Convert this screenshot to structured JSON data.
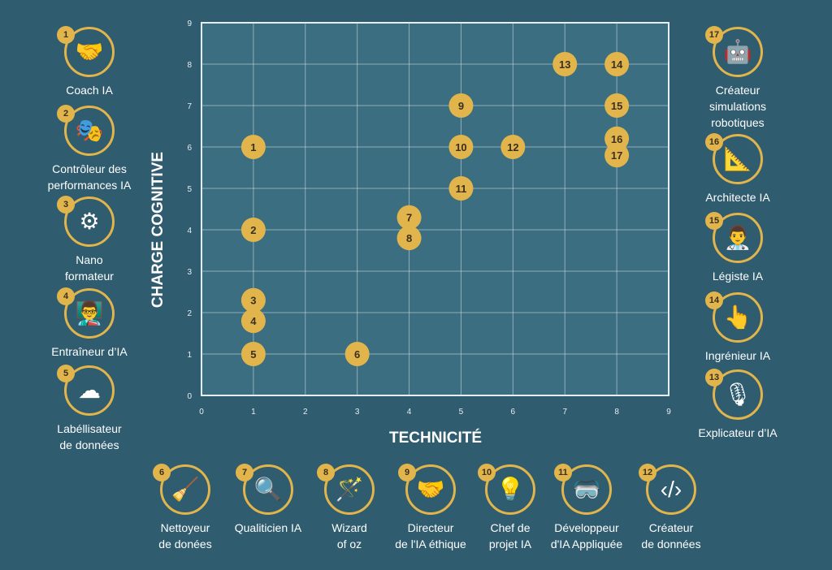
{
  "chart_data": {
    "type": "scatter",
    "xlabel": "TECHNICITÉ",
    "ylabel": "CHARGE COGNITIVE",
    "xlim": [
      0,
      9
    ],
    "ylim": [
      0,
      9
    ],
    "x_ticks": [
      "0",
      "1",
      "2",
      "3",
      "4",
      "5",
      "6",
      "7",
      "8",
      "9"
    ],
    "y_ticks": [
      "0",
      "1",
      "2",
      "3",
      "4",
      "5",
      "6",
      "7",
      "8",
      "9"
    ],
    "grid": true,
    "legend": "roles arranged around plot",
    "point_color": "#e1b54b",
    "points": [
      {
        "label": "1",
        "x": 1,
        "y": 6
      },
      {
        "label": "2",
        "x": 1,
        "y": 4
      },
      {
        "label": "3",
        "x": 1,
        "y": 2.3
      },
      {
        "label": "4",
        "x": 1,
        "y": 1.8
      },
      {
        "label": "5",
        "x": 1,
        "y": 1
      },
      {
        "label": "6",
        "x": 3,
        "y": 1
      },
      {
        "label": "7",
        "x": 4,
        "y": 4.3
      },
      {
        "label": "8",
        "x": 4,
        "y": 3.8
      },
      {
        "label": "9",
        "x": 5,
        "y": 7
      },
      {
        "label": "10",
        "x": 5,
        "y": 6
      },
      {
        "label": "11",
        "x": 5,
        "y": 5
      },
      {
        "label": "12",
        "x": 6,
        "y": 6
      },
      {
        "label": "13",
        "x": 7,
        "y": 8
      },
      {
        "label": "14",
        "x": 8,
        "y": 8
      },
      {
        "label": "15",
        "x": 8,
        "y": 7
      },
      {
        "label": "16",
        "x": 8,
        "y": 6.2
      },
      {
        "label": "17",
        "x": 8,
        "y": 5.8
      }
    ]
  },
  "roles": [
    {
      "num": "1",
      "label": "Coach IA",
      "icon": "🤝"
    },
    {
      "num": "2",
      "label": "Contrôleur des\nperformances IA",
      "icon": "🎭"
    },
    {
      "num": "3",
      "label": "Nano\nformateur",
      "icon": "⚙"
    },
    {
      "num": "4",
      "label": "Entraîneur d’IA",
      "icon": "👨‍🏫"
    },
    {
      "num": "5",
      "label": "Labéllisateur\nde données",
      "icon": "☁"
    },
    {
      "num": "6",
      "label": "Nettoyeur\nde donées",
      "icon": "🧹"
    },
    {
      "num": "7",
      "label": "Qualiticien IA",
      "icon": "🔍"
    },
    {
      "num": "8",
      "label": "Wizard\nof oz",
      "icon": "🪄"
    },
    {
      "num": "9",
      "label": "Directeur\nde l'IA éthique",
      "icon": "🤝"
    },
    {
      "num": "10",
      "label": "Chef de\nprojet IA",
      "icon": "💡"
    },
    {
      "num": "11",
      "label": "Développeur\nd'IA Appliquée",
      "icon": "🥽"
    },
    {
      "num": "12",
      "label": "Créateur\nde données",
      "icon": "‹/›"
    },
    {
      "num": "13",
      "label": "Explicateur d’IA",
      "icon": "🎙"
    },
    {
      "num": "14",
      "label": "Ingrénieur IA",
      "icon": "👆"
    },
    {
      "num": "15",
      "label": "Légiste IA",
      "icon": "👨‍⚕️"
    },
    {
      "num": "16",
      "label": "Architecte IA",
      "icon": "📐"
    },
    {
      "num": "17",
      "label": "Créateur\nsimulations\nrobotiques",
      "icon": "🤖"
    }
  ]
}
